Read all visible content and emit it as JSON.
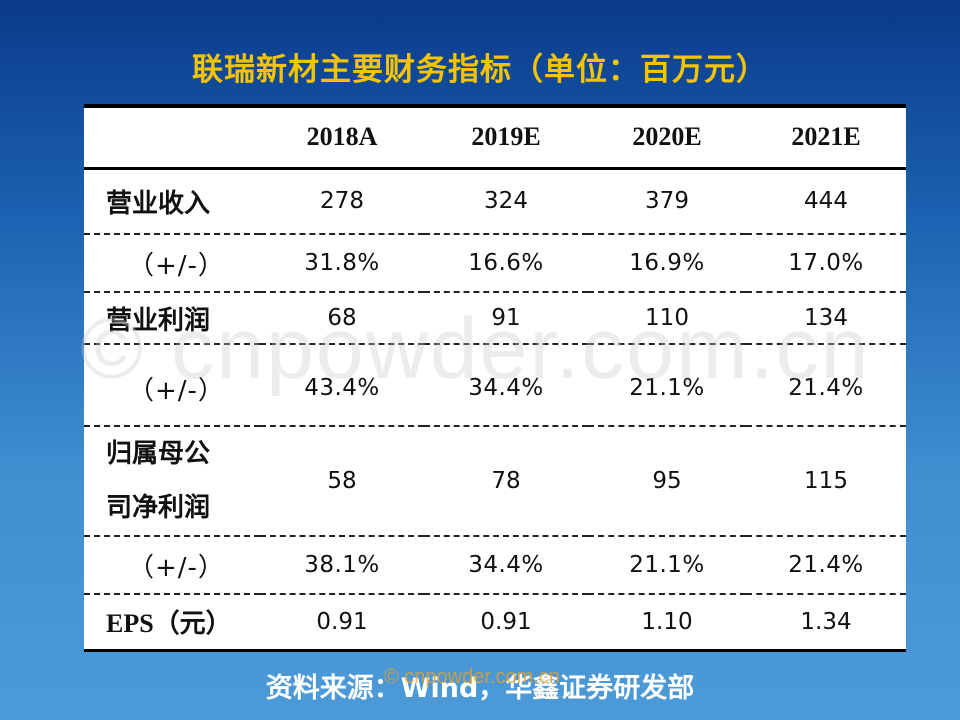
{
  "title": "联瑞新材主要财务指标（单位：百万元）",
  "table": {
    "headers": [
      "",
      "2018A",
      "2019E",
      "2020E",
      "2021E"
    ],
    "rows": [
      {
        "label": "营业收入",
        "values": [
          "278",
          "324",
          "379",
          "444"
        ]
      },
      {
        "label": "（+/-）",
        "values": [
          "31.8%",
          "16.6%",
          "16.9%",
          "17.0%"
        ]
      },
      {
        "label": "营业利润",
        "values": [
          "68",
          "91",
          "110",
          "134"
        ]
      },
      {
        "label": "（+/-）",
        "values": [
          "43.4%",
          "34.4%",
          "21.1%",
          "21.4%"
        ]
      },
      {
        "label_line1": "归属母公",
        "label_line2": "司净利润",
        "values": [
          "58",
          "78",
          "95",
          "115"
        ]
      },
      {
        "label": "（+/-）",
        "values": [
          "38.1%",
          "34.4%",
          "21.1%",
          "21.4%"
        ]
      },
      {
        "label": "EPS（元）",
        "values": [
          "0.91",
          "0.91",
          "1.10",
          "1.34"
        ]
      }
    ]
  },
  "source": "资料来源：Wind，华鑫证券研发部",
  "watermark": "© cnpowder.com.cn",
  "watermark_small": "© cnpowder.com.cn",
  "colors": {
    "title": "#f5c400",
    "background_top": "#0b3a8a",
    "background_bottom": "#4d9ad8",
    "table_bg": "#ffffff"
  }
}
